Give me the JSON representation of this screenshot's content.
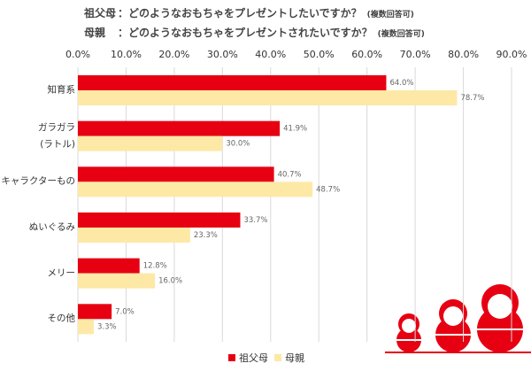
{
  "chart_data": {
    "type": "bar",
    "orientation": "horizontal",
    "title_lines": [
      {
        "who": "祖父母",
        "question": "：どのようなおもちゃをプレゼントしたいですか？",
        "note": "(複数回答可)"
      },
      {
        "who": "母親",
        "question": "：どのようなおもちゃをプレゼントされたいですか？",
        "note": "(複数回答可)"
      }
    ],
    "categories": [
      "知育系",
      "ガラガラ\n(ラトル)",
      "キャラクターもの",
      "ぬいぐるみ",
      "メリー",
      "その他"
    ],
    "series": [
      {
        "name": "祖父母",
        "color": "#e60012",
        "values": [
          64.0,
          41.9,
          40.7,
          33.7,
          12.8,
          7.0
        ],
        "value_labels": [
          "64.0%",
          "41.9%",
          "40.7%",
          "33.7%",
          "12.8%",
          "7.0%"
        ]
      },
      {
        "name": "母親",
        "color": "#fde8a6",
        "values": [
          78.7,
          30.0,
          48.7,
          23.3,
          16.0,
          3.3
        ],
        "value_labels": [
          "78.7%",
          "30.0%",
          "48.7%",
          "23.3%",
          "16.0%",
          "3.3%"
        ]
      }
    ],
    "xlim": [
      0,
      90
    ],
    "xticks": [
      {
        "value": 0,
        "label": "0.0%"
      },
      {
        "value": 10,
        "label": "10.0%"
      },
      {
        "value": 20,
        "label": "20.0%"
      },
      {
        "value": 30,
        "label": "30.0%"
      },
      {
        "value": 40,
        "label": "40.0%"
      },
      {
        "value": 50,
        "label": "50.0%"
      },
      {
        "value": 60,
        "label": "60.0%"
      },
      {
        "value": 70,
        "label": "70.0%"
      },
      {
        "value": 80,
        "label": "80.0%"
      },
      {
        "value": 90,
        "label": "90.0%"
      }
    ],
    "grid": true,
    "legend": "bottom"
  }
}
